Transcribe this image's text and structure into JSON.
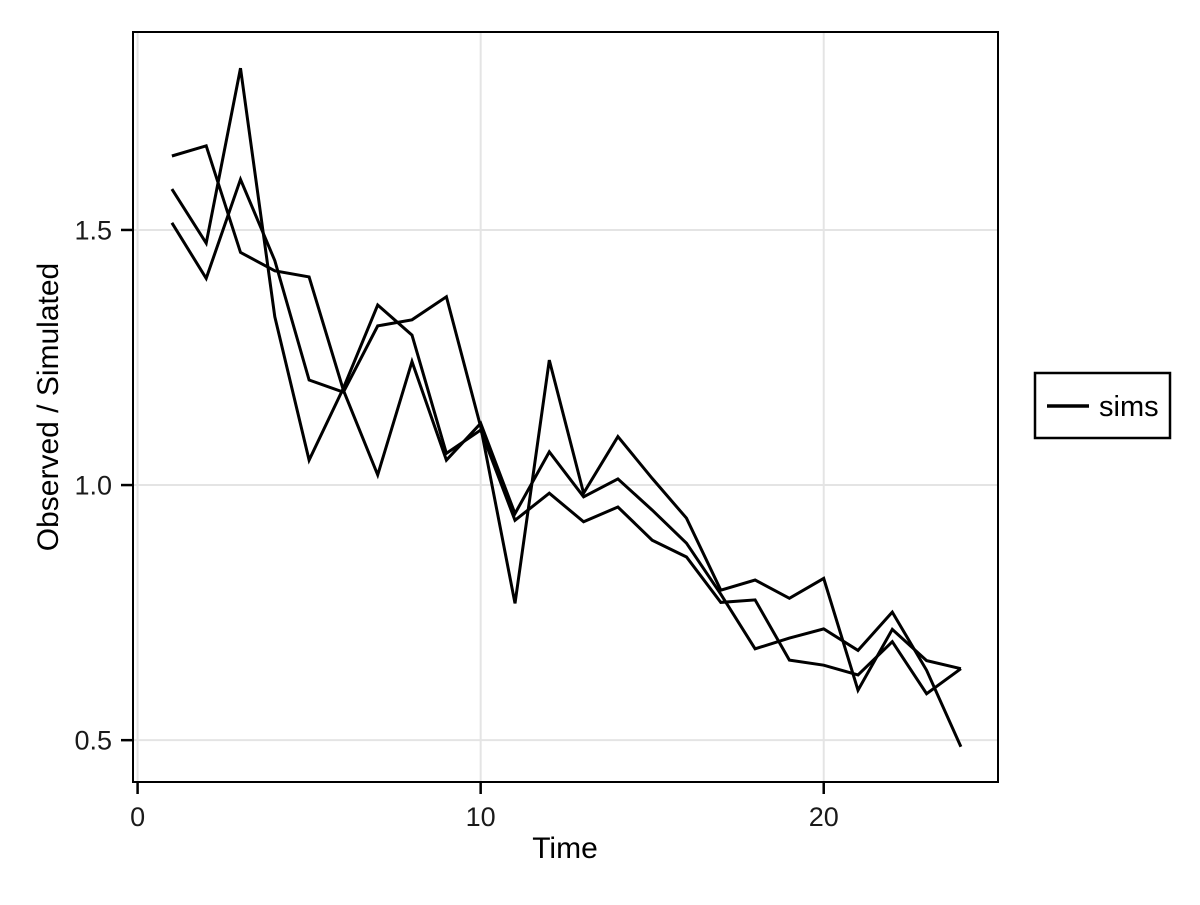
{
  "chart_data": {
    "type": "line",
    "title": "",
    "xlabel": "Time",
    "ylabel": "Observed / Simulated",
    "legend": {
      "label": "sims",
      "position": "right"
    },
    "grid": "major-only",
    "xlim": [
      -0.134,
      25.08
    ],
    "ylim": [
      0.418,
      1.888
    ],
    "x_ticks": [
      {
        "value": 0,
        "label": "0"
      },
      {
        "value": 10,
        "label": "10"
      },
      {
        "value": 20,
        "label": "20"
      }
    ],
    "y_ticks": [
      {
        "value": 1.5,
        "label": "1.5"
      },
      {
        "value": 1.0,
        "label": "1.0"
      },
      {
        "value": 0.5,
        "label": "0.5"
      }
    ],
    "x": [
      1,
      2,
      3,
      4,
      5,
      6,
      7,
      8,
      9,
      10,
      11,
      12,
      13,
      14,
      15,
      16,
      17,
      18,
      19,
      20,
      21,
      22,
      23,
      24
    ],
    "series": [
      {
        "name": "sims",
        "values": [
          1.645,
          1.665,
          1.456,
          1.42,
          1.408,
          1.186,
          1.02,
          1.242,
          1.049,
          1.121,
          0.944,
          1.065,
          0.977,
          1.012,
          0.951,
          0.886,
          0.786,
          0.679,
          0.7,
          0.718,
          0.676,
          0.751,
          0.637,
          0.487
        ]
      },
      {
        "name": "sims",
        "values": [
          1.58,
          1.474,
          1.817,
          1.33,
          1.049,
          1.19,
          1.353,
          1.294,
          1.062,
          1.108,
          0.931,
          0.984,
          0.928,
          0.957,
          0.892,
          0.859,
          0.77,
          0.775,
          0.657,
          0.647,
          0.628,
          0.693,
          0.591,
          0.64
        ]
      },
      {
        "name": "sims",
        "values": [
          1.514,
          1.405,
          1.599,
          1.44,
          1.206,
          1.182,
          1.312,
          1.324,
          1.369,
          1.114,
          0.768,
          1.245,
          0.984,
          1.095,
          1.013,
          0.935,
          0.794,
          0.814,
          0.778,
          0.817,
          0.598,
          0.717,
          0.656,
          0.64
        ]
      }
    ],
    "colors": {
      "line": "#000000",
      "grid": "#e4e4e4",
      "panel_border": "#000000",
      "background": "#ffffff",
      "tick": "#000000"
    }
  },
  "layout_note": "white background, black framed panel, light gray major gridlines, black legend box at right middle"
}
